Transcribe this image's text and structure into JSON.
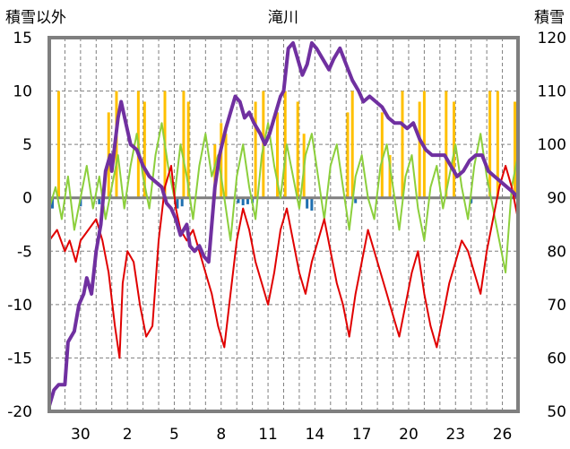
{
  "chart_data": {
    "type": "line",
    "title": "滝川",
    "left_axis_label": "積雪以外",
    "right_axis_label": "積雪",
    "y_left": {
      "min": -20,
      "max": 15,
      "ticks": [
        15,
        10,
        5,
        0,
        -5,
        -10,
        -15,
        -20
      ]
    },
    "y_right": {
      "min": 50,
      "max": 120,
      "ticks": [
        120,
        110,
        100,
        90,
        80,
        70,
        60,
        50
      ]
    },
    "x_day_range": [
      0,
      30
    ],
    "x_tick_labels": [
      {
        "label": "30",
        "day": 2
      },
      {
        "label": "2",
        "day": 5
      },
      {
        "label": "5",
        "day": 8
      },
      {
        "label": "8",
        "day": 11
      },
      {
        "label": "11",
        "day": 14
      },
      {
        "label": "14",
        "day": 17
      },
      {
        "label": "17",
        "day": 20
      },
      {
        "label": "20",
        "day": 23
      },
      {
        "label": "23",
        "day": 26
      },
      {
        "label": "26",
        "day": 29
      }
    ],
    "colors": {
      "temperature": "#e00000",
      "green_series": "#8ccf3c",
      "snow_depth": "#7030a0",
      "orange_bars": "#ffc000",
      "blue_bars": "#1f6fb0",
      "grid": "#7f7f7f",
      "frame": "#7f7f7f"
    },
    "snow_depth_series": [
      [
        0.0,
        51
      ],
      [
        0.3,
        54
      ],
      [
        0.6,
        55
      ],
      [
        1.0,
        55
      ],
      [
        1.2,
        63
      ],
      [
        1.6,
        65
      ],
      [
        1.9,
        70
      ],
      [
        2.2,
        72
      ],
      [
        2.4,
        75
      ],
      [
        2.7,
        72
      ],
      [
        3.0,
        80
      ],
      [
        3.3,
        85
      ],
      [
        3.6,
        95
      ],
      [
        3.9,
        98
      ],
      [
        4.0,
        95
      ],
      [
        4.2,
        100
      ],
      [
        4.4,
        105
      ],
      [
        4.6,
        108
      ],
      [
        4.9,
        104
      ],
      [
        5.2,
        100
      ],
      [
        5.6,
        99
      ],
      [
        6.0,
        96
      ],
      [
        6.4,
        94
      ],
      [
        6.8,
        93
      ],
      [
        7.2,
        92
      ],
      [
        7.5,
        89
      ],
      [
        7.8,
        88
      ],
      [
        8.1,
        86
      ],
      [
        8.4,
        83
      ],
      [
        8.8,
        85
      ],
      [
        9.0,
        81
      ],
      [
        9.3,
        80
      ],
      [
        9.6,
        81
      ],
      [
        9.9,
        79
      ],
      [
        10.2,
        78
      ],
      [
        10.6,
        92
      ],
      [
        10.9,
        98
      ],
      [
        11.3,
        103
      ],
      [
        11.6,
        106
      ],
      [
        11.9,
        109
      ],
      [
        12.2,
        108
      ],
      [
        12.5,
        105
      ],
      [
        12.8,
        106
      ],
      [
        13.1,
        104
      ],
      [
        13.5,
        102
      ],
      [
        13.8,
        100
      ],
      [
        14.1,
        102
      ],
      [
        14.4,
        105
      ],
      [
        14.8,
        109
      ],
      [
        15.0,
        110
      ],
      [
        15.3,
        118
      ],
      [
        15.6,
        119
      ],
      [
        15.9,
        116
      ],
      [
        16.2,
        113
      ],
      [
        16.5,
        115
      ],
      [
        16.8,
        119
      ],
      [
        17.1,
        118
      ],
      [
        17.5,
        116
      ],
      [
        17.9,
        114
      ],
      [
        18.2,
        116
      ],
      [
        18.6,
        118
      ],
      [
        19.0,
        115
      ],
      [
        19.4,
        112
      ],
      [
        19.8,
        110
      ],
      [
        20.1,
        108
      ],
      [
        20.5,
        109
      ],
      [
        20.9,
        108
      ],
      [
        21.3,
        107
      ],
      [
        21.7,
        105
      ],
      [
        22.1,
        104
      ],
      [
        22.5,
        104
      ],
      [
        22.9,
        103
      ],
      [
        23.3,
        104
      ],
      [
        23.7,
        101
      ],
      [
        24.1,
        99
      ],
      [
        24.5,
        98
      ],
      [
        24.9,
        98
      ],
      [
        25.3,
        98
      ],
      [
        25.7,
        96
      ],
      [
        26.1,
        94
      ],
      [
        26.5,
        95
      ],
      [
        26.9,
        97
      ],
      [
        27.3,
        98
      ],
      [
        27.7,
        98
      ],
      [
        28.1,
        95
      ],
      [
        28.5,
        94
      ],
      [
        28.9,
        93
      ],
      [
        29.3,
        92
      ],
      [
        29.7,
        91
      ],
      [
        30.0,
        90
      ]
    ],
    "temperature_series": [
      [
        0.0,
        -4
      ],
      [
        0.5,
        -3
      ],
      [
        1.0,
        -5
      ],
      [
        1.3,
        -4
      ],
      [
        1.7,
        -6
      ],
      [
        2.0,
        -4
      ],
      [
        2.5,
        -3
      ],
      [
        3.0,
        -2
      ],
      [
        3.4,
        -4
      ],
      [
        3.8,
        -7
      ],
      [
        4.2,
        -12
      ],
      [
        4.5,
        -15
      ],
      [
        4.7,
        -8
      ],
      [
        5.0,
        -5
      ],
      [
        5.4,
        -6
      ],
      [
        5.8,
        -10
      ],
      [
        6.2,
        -13
      ],
      [
        6.6,
        -12
      ],
      [
        7.0,
        -4
      ],
      [
        7.4,
        1
      ],
      [
        7.8,
        3
      ],
      [
        8.1,
        -1
      ],
      [
        8.4,
        -3
      ],
      [
        8.8,
        -4
      ],
      [
        9.2,
        -3
      ],
      [
        9.6,
        -5
      ],
      [
        10.0,
        -7
      ],
      [
        10.4,
        -9
      ],
      [
        10.8,
        -12
      ],
      [
        11.2,
        -14
      ],
      [
        11.6,
        -9
      ],
      [
        12.0,
        -4
      ],
      [
        12.4,
        -1
      ],
      [
        12.8,
        -3
      ],
      [
        13.2,
        -6
      ],
      [
        13.6,
        -8
      ],
      [
        14.0,
        -10
      ],
      [
        14.4,
        -7
      ],
      [
        14.8,
        -3
      ],
      [
        15.2,
        -1
      ],
      [
        15.6,
        -4
      ],
      [
        16.0,
        -7
      ],
      [
        16.4,
        -9
      ],
      [
        16.8,
        -6
      ],
      [
        17.2,
        -4
      ],
      [
        17.6,
        -2
      ],
      [
        18.0,
        -5
      ],
      [
        18.4,
        -8
      ],
      [
        18.8,
        -10
      ],
      [
        19.2,
        -13
      ],
      [
        19.6,
        -9
      ],
      [
        20.0,
        -6
      ],
      [
        20.4,
        -3
      ],
      [
        20.8,
        -5
      ],
      [
        21.2,
        -7
      ],
      [
        21.6,
        -9
      ],
      [
        22.0,
        -11
      ],
      [
        22.4,
        -13
      ],
      [
        22.8,
        -10
      ],
      [
        23.2,
        -7
      ],
      [
        23.6,
        -5
      ],
      [
        24.0,
        -9
      ],
      [
        24.4,
        -12
      ],
      [
        24.8,
        -14
      ],
      [
        25.2,
        -11
      ],
      [
        25.6,
        -8
      ],
      [
        26.0,
        -6
      ],
      [
        26.4,
        -4
      ],
      [
        26.8,
        -5
      ],
      [
        27.2,
        -7
      ],
      [
        27.6,
        -9
      ],
      [
        28.0,
        -5
      ],
      [
        28.4,
        -2
      ],
      [
        28.8,
        1
      ],
      [
        29.2,
        3
      ],
      [
        29.6,
        1
      ],
      [
        30.0,
        -2
      ]
    ],
    "green_series": [
      [
        0.0,
        -1
      ],
      [
        0.4,
        1
      ],
      [
        0.8,
        -2
      ],
      [
        1.2,
        2
      ],
      [
        1.6,
        -3
      ],
      [
        2.0,
        0
      ],
      [
        2.4,
        3
      ],
      [
        2.8,
        -1
      ],
      [
        3.2,
        2
      ],
      [
        3.6,
        -2
      ],
      [
        4.0,
        1
      ],
      [
        4.4,
        4
      ],
      [
        4.8,
        -1
      ],
      [
        5.2,
        3
      ],
      [
        5.6,
        6
      ],
      [
        6.0,
        2
      ],
      [
        6.4,
        -1
      ],
      [
        6.8,
        4
      ],
      [
        7.2,
        7
      ],
      [
        7.6,
        3
      ],
      [
        8.0,
        0
      ],
      [
        8.4,
        5
      ],
      [
        8.8,
        2
      ],
      [
        9.2,
        -2
      ],
      [
        9.6,
        3
      ],
      [
        10.0,
        6
      ],
      [
        10.4,
        2
      ],
      [
        10.8,
        4
      ],
      [
        11.2,
        0
      ],
      [
        11.6,
        -4
      ],
      [
        12.0,
        2
      ],
      [
        12.4,
        5
      ],
      [
        12.8,
        1
      ],
      [
        13.2,
        -2
      ],
      [
        13.6,
        4
      ],
      [
        14.0,
        7
      ],
      [
        14.4,
        3
      ],
      [
        14.8,
        0
      ],
      [
        15.2,
        5
      ],
      [
        15.6,
        2
      ],
      [
        16.0,
        -1
      ],
      [
        16.4,
        4
      ],
      [
        16.8,
        6
      ],
      [
        17.2,
        2
      ],
      [
        17.6,
        -2
      ],
      [
        18.0,
        3
      ],
      [
        18.4,
        5
      ],
      [
        18.8,
        1
      ],
      [
        19.2,
        -3
      ],
      [
        19.6,
        2
      ],
      [
        20.0,
        4
      ],
      [
        20.4,
        0
      ],
      [
        20.8,
        -2
      ],
      [
        21.2,
        3
      ],
      [
        21.6,
        5
      ],
      [
        22.0,
        1
      ],
      [
        22.4,
        -3
      ],
      [
        22.8,
        2
      ],
      [
        23.2,
        4
      ],
      [
        23.6,
        -1
      ],
      [
        24.0,
        -4
      ],
      [
        24.4,
        1
      ],
      [
        24.8,
        3
      ],
      [
        25.2,
        -1
      ],
      [
        25.6,
        2
      ],
      [
        26.0,
        5
      ],
      [
        26.4,
        1
      ],
      [
        26.8,
        -2
      ],
      [
        27.2,
        3
      ],
      [
        27.6,
        6
      ],
      [
        28.0,
        2
      ],
      [
        28.4,
        -1
      ],
      [
        28.8,
        -4
      ],
      [
        29.2,
        -7
      ],
      [
        29.6,
        1
      ],
      [
        30.0,
        4
      ]
    ],
    "orange_bars": [
      {
        "day": 0.6,
        "value": 10
      },
      {
        "day": 3.8,
        "value": 8
      },
      {
        "day": 4.3,
        "value": 10
      },
      {
        "day": 5.7,
        "value": 10
      },
      {
        "day": 6.1,
        "value": 9
      },
      {
        "day": 7.4,
        "value": 10
      },
      {
        "day": 8.6,
        "value": 10
      },
      {
        "day": 8.9,
        "value": 9
      },
      {
        "day": 10.6,
        "value": 5
      },
      {
        "day": 11.0,
        "value": 7
      },
      {
        "day": 11.3,
        "value": 6
      },
      {
        "day": 13.2,
        "value": 9
      },
      {
        "day": 13.7,
        "value": 10
      },
      {
        "day": 14.6,
        "value": 8
      },
      {
        "day": 15.1,
        "value": 10
      },
      {
        "day": 15.9,
        "value": 9
      },
      {
        "day": 16.3,
        "value": 6
      },
      {
        "day": 19.1,
        "value": 8
      },
      {
        "day": 19.4,
        "value": 10
      },
      {
        "day": 21.3,
        "value": 8
      },
      {
        "day": 21.8,
        "value": 4
      },
      {
        "day": 22.6,
        "value": 10
      },
      {
        "day": 23.7,
        "value": 9
      },
      {
        "day": 24.0,
        "value": 10
      },
      {
        "day": 25.4,
        "value": 10
      },
      {
        "day": 25.9,
        "value": 9
      },
      {
        "day": 28.2,
        "value": 10
      },
      {
        "day": 28.7,
        "value": 10
      },
      {
        "day": 29.8,
        "value": 9
      },
      {
        "day": 30.0,
        "value": 10
      }
    ],
    "blue_bars": [
      {
        "day": 0.2,
        "value": -1
      },
      {
        "day": 2.0,
        "value": -0.8
      },
      {
        "day": 3.2,
        "value": -0.6
      },
      {
        "day": 8.2,
        "value": -1
      },
      {
        "day": 8.5,
        "value": -0.8
      },
      {
        "day": 12.1,
        "value": -0.5
      },
      {
        "day": 12.4,
        "value": -0.7
      },
      {
        "day": 12.7,
        "value": -0.6
      },
      {
        "day": 13.0,
        "value": -0.5
      },
      {
        "day": 16.5,
        "value": -1
      },
      {
        "day": 16.8,
        "value": -1.2
      },
      {
        "day": 19.6,
        "value": -0.5
      },
      {
        "day": 27.0,
        "value": -0.5
      }
    ]
  }
}
